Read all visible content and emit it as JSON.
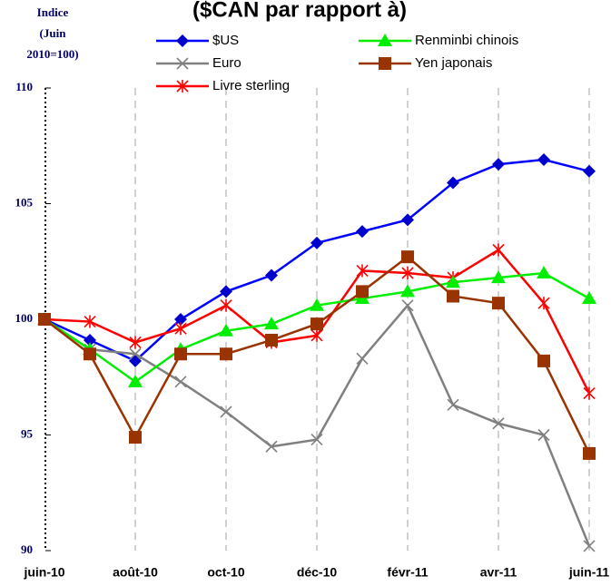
{
  "chart_data": {
    "type": "line",
    "title": "($CAN par rapport à)",
    "y_label": [
      "Indice",
      "(Juin",
      "2010=100)"
    ],
    "categories": [
      "juin-10",
      null,
      "août-10",
      null,
      "oct-10",
      null,
      "déc-10",
      null,
      "févr-11",
      null,
      "avr-11",
      null,
      "juin-11"
    ],
    "series": [
      {
        "name": "$US",
        "color": "#0000ff",
        "marker": "diamond",
        "values": [
          100,
          99.1,
          98.2,
          100,
          101.2,
          101.9,
          103.3,
          103.8,
          104.3,
          105.9,
          106.7,
          106.9,
          106.4
        ]
      },
      {
        "name": "Euro",
        "color": "#808080",
        "marker": "x",
        "values": [
          100,
          98.7,
          98.5,
          97.3,
          96.0,
          94.5,
          94.8,
          98.3,
          100.6,
          96.3,
          95.5,
          95.0,
          90.2
        ]
      },
      {
        "name": "Livre sterling",
        "color": "#ff0000",
        "marker": "star",
        "values": [
          100,
          99.9,
          99.0,
          99.6,
          100.6,
          99.0,
          99.3,
          102.1,
          102.0,
          101.8,
          103.0,
          100.7,
          96.8
        ]
      },
      {
        "name": "Renminbi chinois",
        "color": "#00ee00",
        "marker": "triangle",
        "values": [
          100,
          98.7,
          97.3,
          98.7,
          99.5,
          99.8,
          100.6,
          100.9,
          101.2,
          101.6,
          101.8,
          102.0,
          100.9
        ]
      },
      {
        "name": "Yen japonais",
        "color": "#993300",
        "marker": "square",
        "values": [
          100,
          98.5,
          94.9,
          98.5,
          98.5,
          99.1,
          99.8,
          101.2,
          102.7,
          101.0,
          100.7,
          98.2,
          94.2
        ]
      }
    ],
    "ylim": [
      90,
      110
    ],
    "yticks": [
      90,
      95,
      100,
      105,
      110
    ],
    "grid": true
  }
}
